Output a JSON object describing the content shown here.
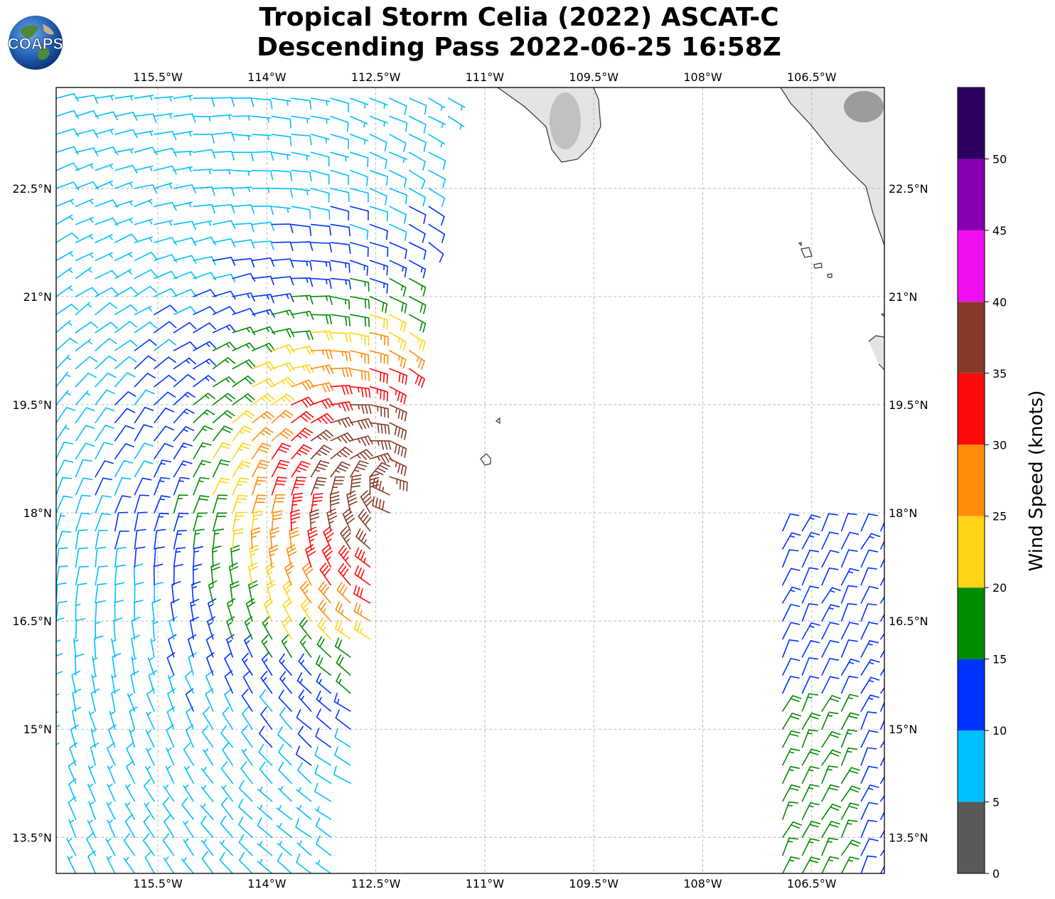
{
  "title": {
    "line1": "Tropical Storm Celia (2022) ASCAT-C",
    "line2": "Descending Pass 2022-06-25 16:58Z"
  },
  "logo": {
    "text": "COAPS",
    "icon": "globe-icon"
  },
  "map": {
    "lon_range": [
      -116.9,
      -105.5
    ],
    "lat_range": [
      13.0,
      23.9
    ],
    "lon_ticks": [
      {
        "value": -115.5,
        "label": "115.5°W"
      },
      {
        "value": -114.0,
        "label": "114°W"
      },
      {
        "value": -112.5,
        "label": "112.5°W"
      },
      {
        "value": -111.0,
        "label": "111°W"
      },
      {
        "value": -109.5,
        "label": "109.5°W"
      },
      {
        "value": -108.0,
        "label": "108°W"
      },
      {
        "value": -106.5,
        "label": "106.5°W"
      }
    ],
    "lat_ticks": [
      {
        "value": 22.5,
        "label": "22.5°N"
      },
      {
        "value": 21.0,
        "label": "21°N"
      },
      {
        "value": 19.5,
        "label": "19.5°N"
      },
      {
        "value": 18.0,
        "label": "18°N"
      },
      {
        "value": 16.5,
        "label": "16.5°N"
      },
      {
        "value": 15.0,
        "label": "15°N"
      },
      {
        "value": 13.5,
        "label": "13.5°N"
      }
    ],
    "grid": true
  },
  "colorbar": {
    "label": "Wind Speed (knots)",
    "bins": [
      {
        "min": 0,
        "max": 5,
        "color": "#595959"
      },
      {
        "min": 5,
        "max": 10,
        "color": "#00bfff"
      },
      {
        "min": 10,
        "max": 15,
        "color": "#0033ff"
      },
      {
        "min": 15,
        "max": 20,
        "color": "#008c00"
      },
      {
        "min": 20,
        "max": 25,
        "color": "#ffd414"
      },
      {
        "min": 25,
        "max": 30,
        "color": "#ff8c0a"
      },
      {
        "min": 30,
        "max": 35,
        "color": "#ff0a0a"
      },
      {
        "min": 35,
        "max": 40,
        "color": "#883a28"
      },
      {
        "min": 40,
        "max": 45,
        "color": "#f00ff0"
      },
      {
        "min": 45,
        "max": 50,
        "color": "#8800b0"
      },
      {
        "min": 50,
        "max": 55,
        "color": "#2c0060"
      }
    ],
    "tick_labels": [
      "0",
      "5",
      "10",
      "15",
      "20",
      "25",
      "30",
      "35",
      "40",
      "45",
      "50"
    ]
  },
  "colors": {
    "coast": "#333333",
    "land_shade": "#9a9a9a",
    "grid": "#b0b0b0"
  }
}
